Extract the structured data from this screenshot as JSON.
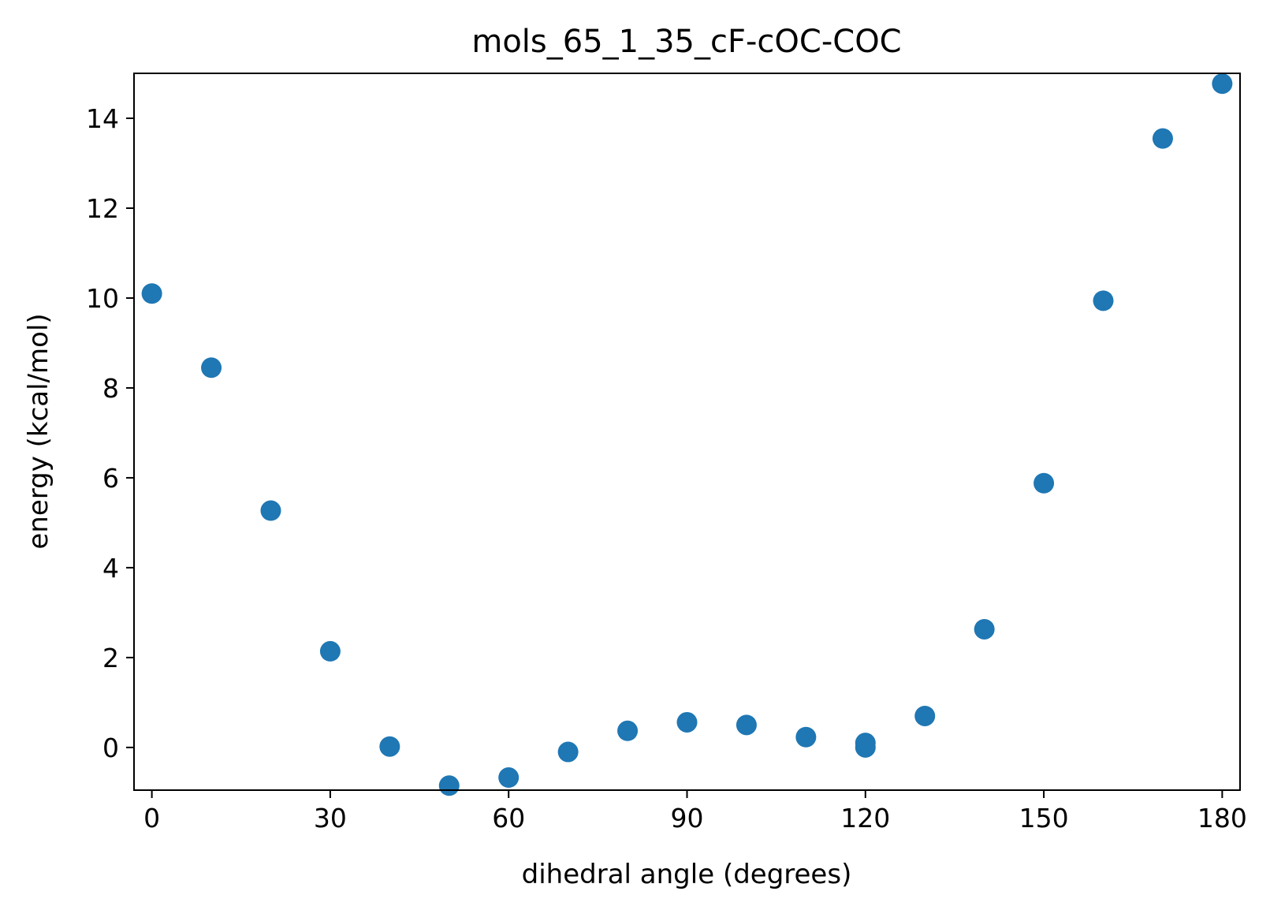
{
  "chart_data": {
    "type": "scatter",
    "title": "mols_65_1_35_cF-cOC-COC",
    "xlabel": "dihedral angle (degrees)",
    "ylabel": "energy (kcal/mol)",
    "xlim": [
      -3,
      183
    ],
    "ylim": [
      -0.95,
      15
    ],
    "xticks": [
      0,
      30,
      60,
      90,
      120,
      150,
      180
    ],
    "yticks": [
      0,
      2,
      4,
      6,
      8,
      10,
      12,
      14
    ],
    "marker_color": "#1f77b4",
    "grid": false,
    "series": [
      {
        "name": "energy",
        "points": [
          {
            "x": 0,
            "y": 10.1
          },
          {
            "x": 10,
            "y": 8.45
          },
          {
            "x": 20,
            "y": 5.27
          },
          {
            "x": 30,
            "y": 2.14
          },
          {
            "x": 40,
            "y": 0.02
          },
          {
            "x": 50,
            "y": -0.85
          },
          {
            "x": 60,
            "y": -0.67
          },
          {
            "x": 70,
            "y": -0.1
          },
          {
            "x": 80,
            "y": 0.37
          },
          {
            "x": 90,
            "y": 0.56
          },
          {
            "x": 100,
            "y": 0.5
          },
          {
            "x": 110,
            "y": 0.23
          },
          {
            "x": 120,
            "y": 0.0
          },
          {
            "x": 120,
            "y": 0.1
          },
          {
            "x": 130,
            "y": 0.7
          },
          {
            "x": 140,
            "y": 2.63
          },
          {
            "x": 150,
            "y": 5.88
          },
          {
            "x": 160,
            "y": 9.94
          },
          {
            "x": 170,
            "y": 13.55
          },
          {
            "x": 180,
            "y": 14.77
          }
        ]
      }
    ]
  }
}
